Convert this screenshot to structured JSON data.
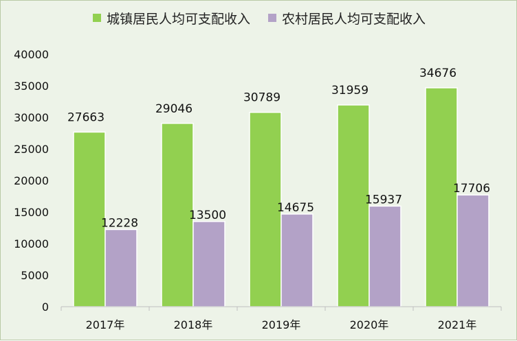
{
  "chart_data": {
    "type": "bar",
    "categories": [
      "2017年",
      "2018年",
      "2019年",
      "2020年",
      "2021年"
    ],
    "series": [
      {
        "name": "城镇居民人均可支配收入",
        "color": "#92d050",
        "values": [
          27663,
          29046,
          30789,
          31959,
          34676
        ]
      },
      {
        "name": "农村居民人均可支配收入",
        "color": "#b3a2c7",
        "values": [
          12228,
          13500,
          14675,
          15937,
          17706
        ]
      }
    ],
    "yticks": [
      "0",
      "5000",
      "10000",
      "15000",
      "20000",
      "25000",
      "30000",
      "35000",
      "40000"
    ],
    "ylim": [
      0,
      40000
    ],
    "legend_position": "top",
    "grid": false
  }
}
